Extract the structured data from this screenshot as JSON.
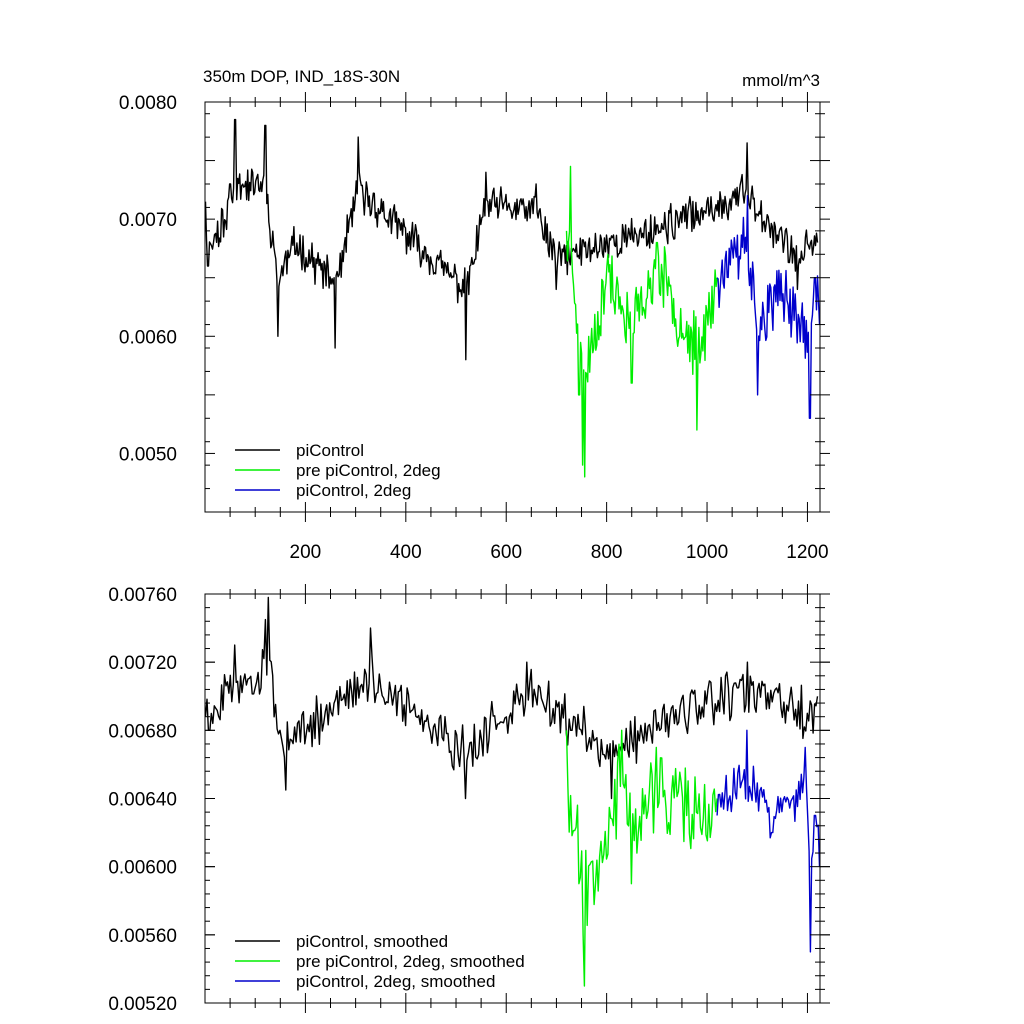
{
  "chart_data": [
    {
      "type": "line",
      "title": "350m DOP, IND_18S-30N",
      "units": "mmol/m^3",
      "xlim": [
        0,
        1225
      ],
      "ylim": [
        0.0045,
        0.008
      ],
      "x_ticks": [
        200,
        400,
        600,
        800,
        1000,
        1200
      ],
      "x_tick_labels": [
        "200",
        "400",
        "600",
        "800",
        "1000",
        "1200"
      ],
      "y_ticks": [
        0.005,
        0.006,
        0.007,
        0.008
      ],
      "y_tick_labels": [
        "0.0050",
        "0.0060",
        "0.0070",
        "0.0080"
      ],
      "legend": {
        "placement": "bottom-left",
        "entries": [
          "piControl",
          "pre piControl, 2deg",
          "piControl, 2deg"
        ]
      },
      "series": [
        {
          "name": "piControl",
          "color": "#000000",
          "x_start": 1,
          "x_end": 1220,
          "n": 610,
          "mean": 0.00688,
          "amp": 0.00022,
          "seed": 11,
          "anchors": [
            [
              1,
              0.00715
            ],
            [
              6,
              0.0066
            ],
            [
              50,
              0.0073
            ],
            [
              60,
              0.00785
            ],
            [
              120,
              0.0078
            ],
            [
              145,
              0.006
            ],
            [
              180,
              0.0067
            ],
            [
              260,
              0.0059
            ],
            [
              305,
              0.0077
            ],
            [
              520,
              0.0058
            ],
            [
              560,
              0.0074
            ],
            [
              660,
              0.0073
            ],
            [
              700,
              0.0064
            ],
            [
              900,
              0.00695
            ],
            [
              1080,
              0.00765
            ],
            [
              1180,
              0.0064
            ],
            [
              1220,
              0.0068
            ]
          ]
        },
        {
          "name": "pre piControl, 2deg",
          "color": "#00ee00",
          "x_start": 720,
          "x_end": 1020,
          "n": 150,
          "mean": 0.0064,
          "amp": 0.0004,
          "seed": 23,
          "anchors": [
            [
              720,
              0.0069
            ],
            [
              728,
              0.00745
            ],
            [
              745,
              0.0055
            ],
            [
              752,
              0.0049
            ],
            [
              756,
              0.0048
            ],
            [
              800,
              0.0066
            ],
            [
              850,
              0.0056
            ],
            [
              900,
              0.0068
            ],
            [
              940,
              0.006
            ],
            [
              980,
              0.0052
            ],
            [
              1020,
              0.0065
            ]
          ]
        },
        {
          "name": "piControl, 2deg",
          "color": "#0000cc",
          "x_start": 1020,
          "x_end": 1224,
          "n": 102,
          "mean": 0.0065,
          "amp": 0.00035,
          "seed": 37,
          "anchors": [
            [
              1020,
              0.0065
            ],
            [
              1080,
              0.0072
            ],
            [
              1100,
              0.0055
            ],
            [
              1150,
              0.0063
            ],
            [
              1205,
              0.0053
            ],
            [
              1215,
              0.0065
            ],
            [
              1224,
              0.0061
            ]
          ]
        }
      ]
    },
    {
      "type": "line",
      "xlim": [
        0,
        1225
      ],
      "ylim": [
        0.0052,
        0.0076
      ],
      "x_ticks": [
        200,
        400,
        600,
        800,
        1000,
        1200
      ],
      "y_ticks": [
        0.0052,
        0.0056,
        0.006,
        0.0064,
        0.0068,
        0.0072,
        0.0076
      ],
      "y_tick_labels": [
        "0.00520",
        "0.00560",
        "0.00600",
        "0.00640",
        "0.00680",
        "0.00720",
        "0.00760"
      ],
      "legend": {
        "placement": "bottom-left",
        "entries": [
          "piControl, smoothed",
          "pre piControl, 2deg, smoothed",
          "piControl, 2deg, smoothed"
        ]
      },
      "series": [
        {
          "name": "piControl, smoothed",
          "color": "#000000",
          "x_start": 1,
          "x_end": 1220,
          "n": 420,
          "mean": 0.00688,
          "amp": 0.0002,
          "seed": 51,
          "anchors": [
            [
              1,
              0.00688
            ],
            [
              8,
              0.0068
            ],
            [
              60,
              0.0073
            ],
            [
              120,
              0.00745
            ],
            [
              125,
              0.00758
            ],
            [
              150,
              0.0068
            ],
            [
              160,
              0.00645
            ],
            [
              330,
              0.0074
            ],
            [
              520,
              0.0064
            ],
            [
              640,
              0.0072
            ],
            [
              730,
              0.0068
            ],
            [
              810,
              0.0064
            ],
            [
              900,
              0.0068
            ],
            [
              1080,
              0.0072
            ],
            [
              1200,
              0.0069
            ],
            [
              1220,
              0.007
            ]
          ]
        },
        {
          "name": "pre piControl, 2deg, smoothed",
          "color": "#00ee00",
          "x_start": 720,
          "x_end": 1020,
          "n": 110,
          "mean": 0.0063,
          "amp": 0.00035,
          "seed": 67,
          "anchors": [
            [
              720,
              0.0068
            ],
            [
              745,
              0.0059
            ],
            [
              752,
              0.0056
            ],
            [
              756,
              0.0053
            ],
            [
              830,
              0.0068
            ],
            [
              850,
              0.0059
            ],
            [
              900,
              0.0067
            ],
            [
              960,
              0.0063
            ],
            [
              1020,
              0.0064
            ]
          ]
        },
        {
          "name": "piControl, 2deg, smoothed",
          "color": "#0000cc",
          "x_start": 1020,
          "x_end": 1224,
          "n": 80,
          "mean": 0.00635,
          "amp": 0.0002,
          "seed": 83,
          "anchors": [
            [
              1020,
              0.0063
            ],
            [
              1080,
              0.0068
            ],
            [
              1130,
              0.0062
            ],
            [
              1170,
              0.0064
            ],
            [
              1195,
              0.0067
            ],
            [
              1205,
              0.0055
            ],
            [
              1215,
              0.0063
            ],
            [
              1224,
              0.006
            ]
          ]
        }
      ]
    }
  ]
}
